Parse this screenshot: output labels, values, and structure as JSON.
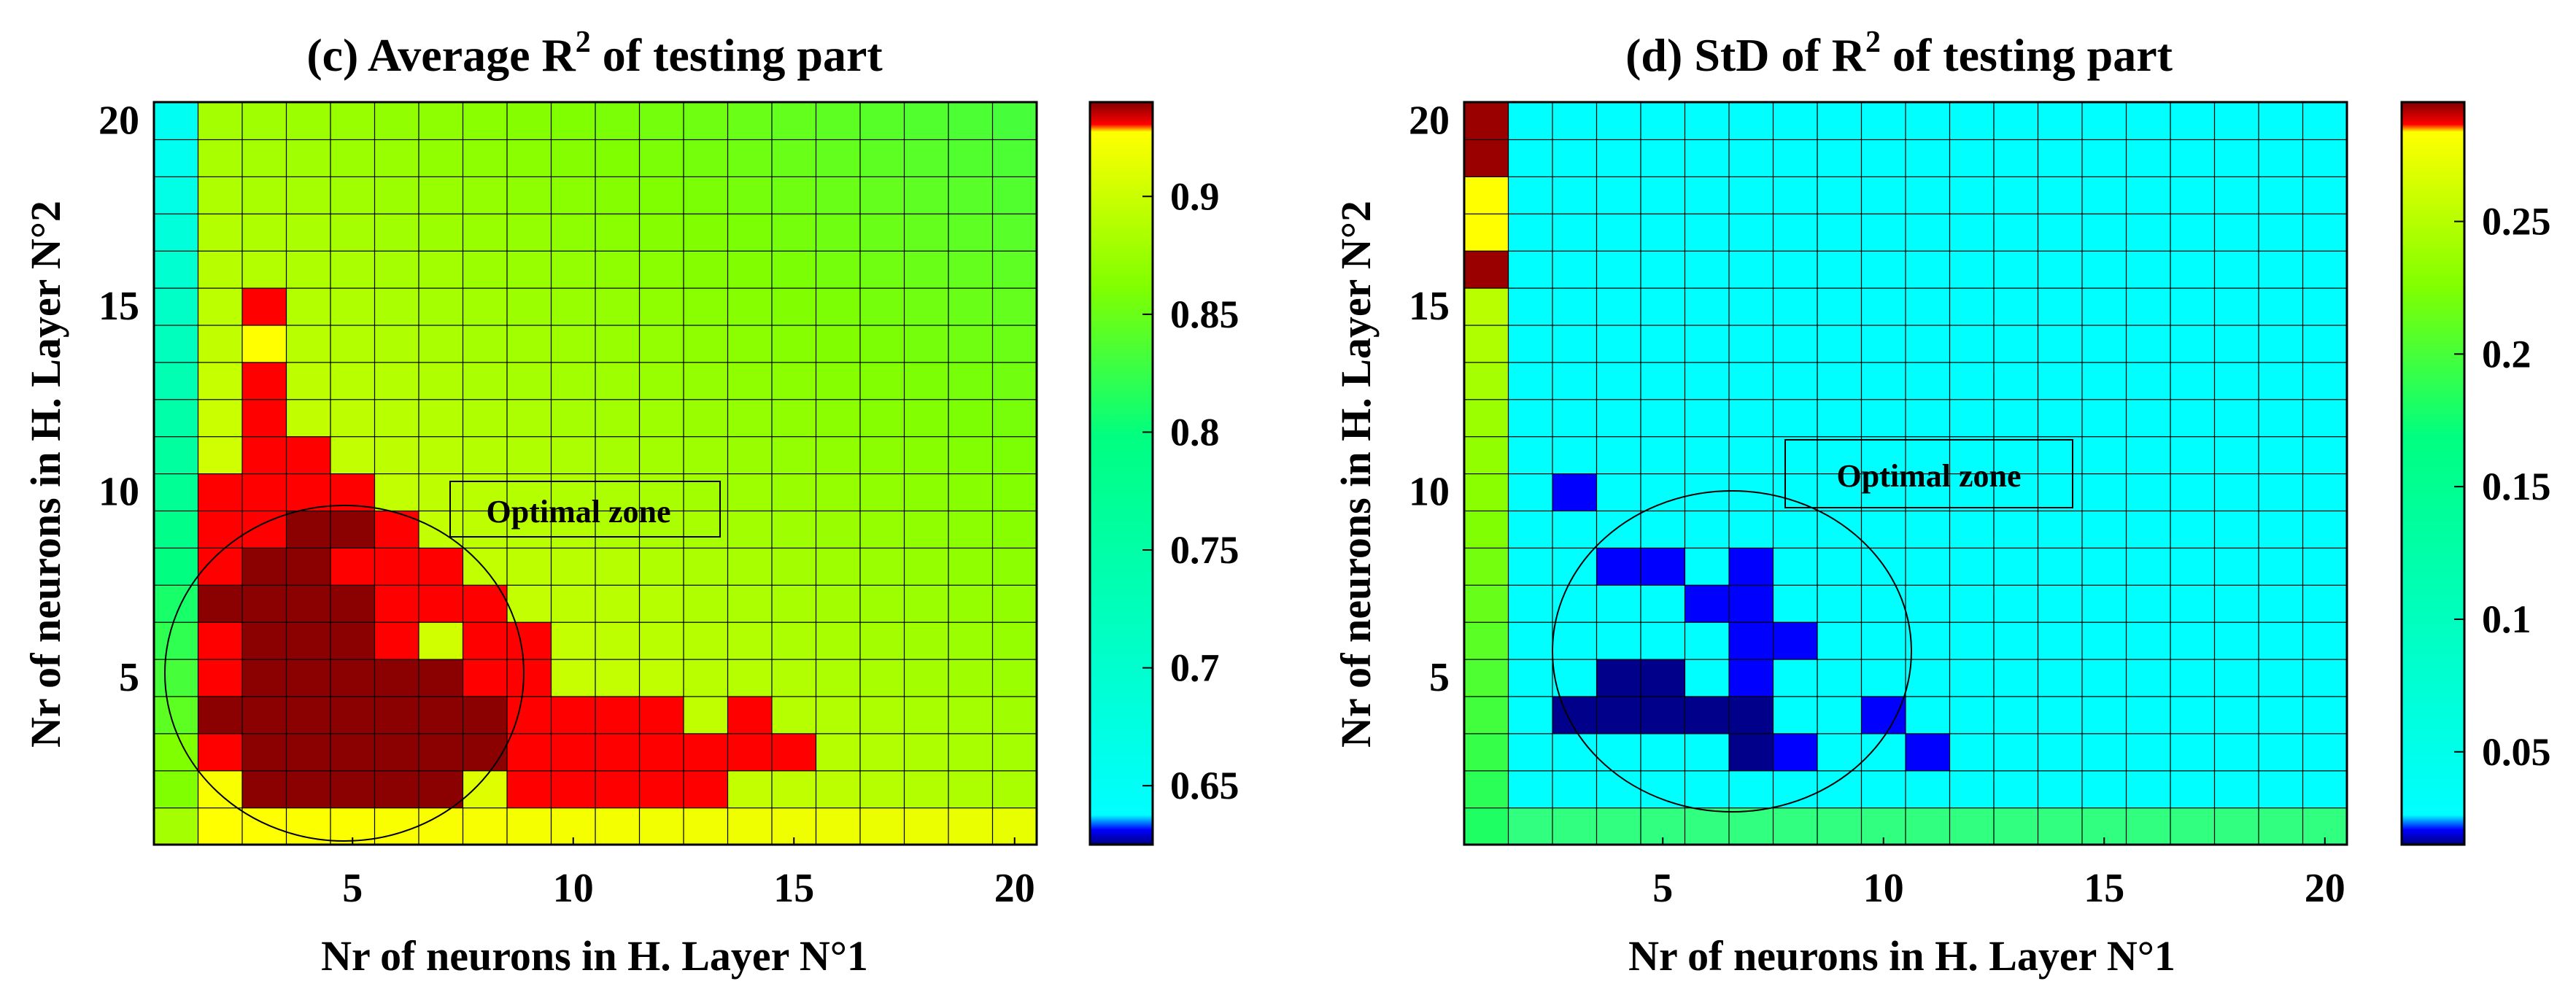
{
  "chart_data": [
    {
      "type": "heatmap",
      "panel": "c",
      "title": "(c) Average R",
      "title_superscript": "2",
      "title_suffix": " of testing part",
      "xlabel": "Nr of neurons in H. Layer N°1",
      "ylabel": "Nr of neurons in H. Layer N°2",
      "x_ticks": [
        "5",
        "10",
        "15",
        "20"
      ],
      "y_ticks": [
        "5",
        "10",
        "15",
        "20"
      ],
      "xlim": [
        1,
        20
      ],
      "ylim": [
        1,
        20
      ],
      "colorbar": {
        "min": 0.625,
        "max": 0.94,
        "ticks": [
          0.65,
          0.7,
          0.75,
          0.8,
          0.85,
          0.9
        ],
        "tick_labels": [
          "0.65",
          "0.7",
          "0.75",
          "0.8",
          "0.85",
          "0.9"
        ]
      },
      "annotation": {
        "label": "Optimal zone",
        "circle_center": [
          5,
          5.5
        ],
        "circle_radius_x": 3.8,
        "circle_radius_y": 4.6
      },
      "grid": "1..20 x 1..20 cells; value = fn of (x,y) with optimal zone at max (dark red ~0.94) and red region (~0.935)",
      "values_formula": "yellow/green gradient between 0.75 and 0.92",
      "dark_red_cells": [
        [
          3,
          2
        ],
        [
          4,
          2
        ],
        [
          5,
          2
        ],
        [
          6,
          2
        ],
        [
          7,
          2
        ],
        [
          3,
          3
        ],
        [
          4,
          3
        ],
        [
          5,
          3
        ],
        [
          6,
          3
        ],
        [
          7,
          3
        ],
        [
          8,
          3
        ],
        [
          2,
          4
        ],
        [
          3,
          4
        ],
        [
          4,
          4
        ],
        [
          5,
          4
        ],
        [
          6,
          4
        ],
        [
          7,
          4
        ],
        [
          8,
          4
        ],
        [
          3,
          5
        ],
        [
          4,
          5
        ],
        [
          5,
          5
        ],
        [
          6,
          5
        ],
        [
          7,
          5
        ],
        [
          3,
          6
        ],
        [
          4,
          6
        ],
        [
          5,
          6
        ],
        [
          2,
          7
        ],
        [
          3,
          7
        ],
        [
          4,
          7
        ],
        [
          5,
          7
        ],
        [
          3,
          8
        ],
        [
          4,
          8
        ],
        [
          4,
          9
        ],
        [
          5,
          9
        ]
      ],
      "red_cells": [
        [
          2,
          3
        ],
        [
          9,
          2
        ],
        [
          10,
          2
        ],
        [
          11,
          2
        ],
        [
          12,
          2
        ],
        [
          13,
          2
        ],
        [
          9,
          3
        ],
        [
          10,
          3
        ],
        [
          11,
          3
        ],
        [
          12,
          3
        ],
        [
          13,
          3
        ],
        [
          14,
          3
        ],
        [
          15,
          3
        ],
        [
          9,
          4
        ],
        [
          10,
          4
        ],
        [
          11,
          4
        ],
        [
          12,
          4
        ],
        [
          14,
          4
        ],
        [
          8,
          5
        ],
        [
          9,
          5
        ],
        [
          2,
          5
        ],
        [
          8,
          6
        ],
        [
          2,
          6
        ],
        [
          6,
          6
        ],
        [
          6,
          7
        ],
        [
          7,
          7
        ],
        [
          8,
          7
        ],
        [
          6,
          8
        ],
        [
          7,
          8
        ],
        [
          5,
          8
        ],
        [
          2,
          8
        ],
        [
          2,
          9
        ],
        [
          3,
          9
        ],
        [
          6,
          9
        ],
        [
          2,
          10
        ],
        [
          3,
          10
        ],
        [
          4,
          10
        ],
        [
          5,
          10
        ],
        [
          3,
          11
        ],
        [
          4,
          11
        ],
        [
          3,
          12
        ],
        [
          3,
          13
        ],
        [
          3,
          15
        ],
        [
          9,
          6
        ]
      ],
      "yellow_override_cells": [
        [
          3,
          14
        ]
      ]
    },
    {
      "type": "heatmap",
      "panel": "d",
      "title": "(d) StD of R",
      "title_superscript": "2",
      "title_suffix": " of testing part",
      "xlabel": "Nr of neurons in H. Layer N°1",
      "ylabel": "Nr of neurons in H. Layer N°2",
      "x_ticks": [
        "5",
        "10",
        "15",
        "20"
      ],
      "y_ticks": [
        "5",
        "10",
        "15",
        "20"
      ],
      "xlim": [
        1,
        20
      ],
      "ylim": [
        1,
        20
      ],
      "colorbar": {
        "min": 0.015,
        "max": 0.295,
        "ticks": [
          0.05,
          0.1,
          0.15,
          0.2,
          0.25
        ],
        "tick_labels": [
          "0.05",
          "0.1",
          "0.15",
          "0.2",
          "0.25"
        ]
      },
      "annotation": {
        "label": "Optimal zone",
        "circle_center": [
          6.8,
          5.9
        ],
        "circle_radius_x": 3.8,
        "circle_radius_y": 4.2
      },
      "dark_blue_cells": [
        [
          4,
          5
        ],
        [
          5,
          5
        ],
        [
          3,
          4
        ],
        [
          4,
          4
        ],
        [
          5,
          4
        ],
        [
          6,
          4
        ],
        [
          7,
          4
        ],
        [
          7,
          3
        ]
      ],
      "blue_cells": [
        [
          3,
          10
        ],
        [
          4,
          8
        ],
        [
          5,
          8
        ],
        [
          7,
          8
        ],
        [
          7,
          7
        ],
        [
          6,
          7
        ],
        [
          7,
          6
        ],
        [
          8,
          6
        ],
        [
          7,
          5
        ],
        [
          8,
          3
        ],
        [
          10,
          4
        ],
        [
          11,
          3
        ]
      ],
      "high_cells": [
        [
          1,
          20
        ],
        [
          1,
          19
        ],
        [
          1,
          16
        ]
      ],
      "yellow_cells": [
        [
          1,
          18
        ],
        [
          1,
          17
        ]
      ]
    }
  ]
}
